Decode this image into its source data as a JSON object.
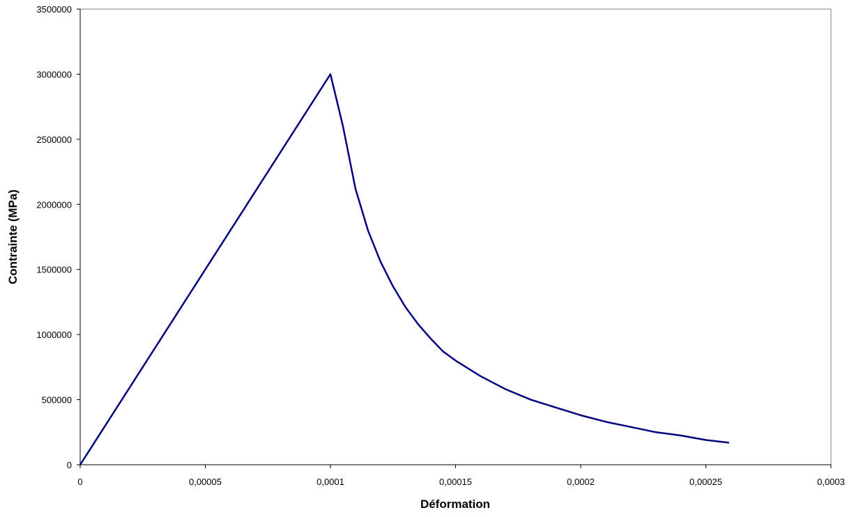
{
  "chart_data": {
    "type": "line",
    "title": "",
    "xlabel": "Déformation",
    "ylabel": "Contrainte (MPa)",
    "xlim": [
      0,
      0.0003
    ],
    "ylim": [
      0,
      3500000
    ],
    "x_ticks": [
      "0",
      "0,00005",
      "0,0001",
      "0,00015",
      "0,0002",
      "0,00025",
      "0,0003"
    ],
    "x_tick_values": [
      0,
      5e-05,
      0.0001,
      0.00015,
      0.0002,
      0.00025,
      0.0003
    ],
    "y_ticks": [
      "0",
      "500000",
      "1000000",
      "1500000",
      "2000000",
      "2500000",
      "3000000",
      "3500000"
    ],
    "y_tick_values": [
      0,
      500000,
      1000000,
      1500000,
      2000000,
      2500000,
      3000000,
      3500000
    ],
    "grid": false,
    "legend": "none",
    "series": [
      {
        "color": "#000080",
        "x": [
          0,
          0.0001,
          0.000105,
          0.00011,
          0.000115,
          0.00012,
          0.000125,
          0.00013,
          0.000135,
          0.00014,
          0.000145,
          0.00015,
          0.00016,
          0.00017,
          0.00018,
          0.00019,
          0.0002,
          0.00021,
          0.00022,
          0.00023,
          0.00024,
          0.00025,
          0.000259
        ],
        "y": [
          0,
          3000000,
          2600000,
          2120000,
          1800000,
          1560000,
          1370000,
          1210000,
          1080000,
          970000,
          870000,
          800000,
          680000,
          580000,
          500000,
          440000,
          380000,
          330000,
          290000,
          250000,
          225000,
          190000,
          170000
        ]
      }
    ]
  }
}
